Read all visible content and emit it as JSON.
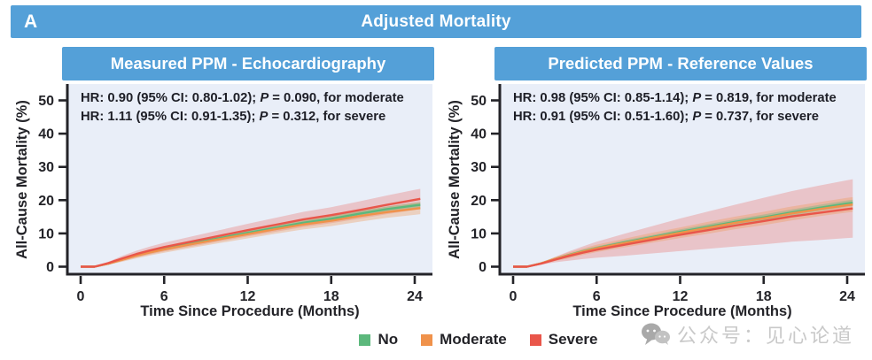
{
  "header": {
    "panel_label": "A",
    "title": "Adjusted Mortality"
  },
  "colors": {
    "header_bg": "#54a0d8",
    "plot_bg": "#e9eef8",
    "axis": "#232328",
    "no": "#5cb87c",
    "moderate": "#f0924b",
    "severe": "#e9564a",
    "watermark": "#c9c9c9"
  },
  "axes": {
    "y_label": "All-Cause Mortality (%)",
    "x_label": "Time Since Procedure (Months)",
    "yticks": [
      0,
      10,
      20,
      30,
      40,
      50
    ],
    "xticks": [
      0,
      6,
      12,
      18,
      24
    ]
  },
  "legend": {
    "items": [
      {
        "label": "No",
        "color": "#5cb87c"
      },
      {
        "label": "Moderate",
        "color": "#f0924b"
      },
      {
        "label": "Severe",
        "color": "#e9564a"
      }
    ]
  },
  "watermark": {
    "text": "公众号：见心论道"
  },
  "panels": [
    {
      "title": "Measured PPM - Echocardiography",
      "stats": [
        {
          "pre": "HR: 0.90 (95% CI: 0.80-1.02); ",
          "p": "P",
          "post": " = 0.090, for moderate"
        },
        {
          "pre": "HR: 1.11 (95% CI: 0.91-1.35); ",
          "p": "P",
          "post": " = 0.312, for severe"
        }
      ]
    },
    {
      "title": "Predicted PPM - Reference Values",
      "stats": [
        {
          "pre": "HR: 0.98 (95% CI: 0.85-1.14); ",
          "p": "P",
          "post": " = 0.819, for moderate"
        },
        {
          "pre": "HR: 0.91 (95% CI: 0.51-1.60); ",
          "p": "P",
          "post": " = 0.737, for severe"
        }
      ]
    }
  ],
  "chart_data": [
    {
      "type": "line",
      "title": "Measured PPM - Echocardiography",
      "xlabel": "Time Since Procedure (Months)",
      "ylabel": "All-Cause Mortality (%)",
      "xlim": [
        0,
        24
      ],
      "ylim": [
        0,
        50
      ],
      "grid": false,
      "x": [
        0,
        1,
        2,
        3,
        4,
        5,
        6,
        8,
        10,
        12,
        14,
        16,
        18,
        20,
        22,
        24,
        24.4
      ],
      "series": [
        {
          "key": "no",
          "name": "No",
          "color": "#5cb87c",
          "band_opacity": 0.35,
          "values": [
            0,
            0,
            0.9,
            2.2,
            3.4,
            4.4,
            5.4,
            7.0,
            8.6,
            10.2,
            11.7,
            13.2,
            14.4,
            15.9,
            17.3,
            18.4,
            18.6
          ],
          "lo": [
            0,
            0,
            0.7,
            1.9,
            3.0,
            4.0,
            4.9,
            6.5,
            8.0,
            9.6,
            11.0,
            12.5,
            13.6,
            15.1,
            16.5,
            17.6,
            17.8
          ],
          "hi": [
            0,
            0,
            1.1,
            2.5,
            3.8,
            4.8,
            5.9,
            7.5,
            9.2,
            10.8,
            12.4,
            13.9,
            15.2,
            16.7,
            18.1,
            19.2,
            19.4
          ]
        },
        {
          "key": "moderate",
          "name": "Moderate",
          "color": "#f0924b",
          "band_opacity": 0.32,
          "values": [
            0,
            0,
            0.9,
            2.1,
            3.3,
            4.3,
            5.2,
            6.8,
            8.3,
            9.8,
            11.3,
            12.7,
            13.8,
            15.2,
            16.4,
            17.4,
            17.6
          ],
          "lo": [
            0,
            0,
            0.6,
            1.5,
            2.5,
            3.4,
            4.2,
            5.7,
            7.1,
            8.5,
            9.9,
            11.2,
            12.2,
            13.5,
            14.7,
            15.6,
            15.8
          ],
          "hi": [
            0,
            0,
            1.2,
            2.7,
            4.1,
            5.2,
            6.2,
            7.9,
            9.5,
            11.1,
            12.7,
            14.2,
            15.4,
            16.9,
            18.1,
            19.2,
            19.4
          ]
        },
        {
          "key": "severe",
          "name": "Severe",
          "color": "#e9564a",
          "band_opacity": 0.27,
          "values": [
            0,
            0,
            1.1,
            2.5,
            3.8,
            4.9,
            5.9,
            7.6,
            9.3,
            11.0,
            12.6,
            14.2,
            15.5,
            17.0,
            18.6,
            20.1,
            20.4
          ],
          "lo": [
            0,
            0,
            0.7,
            1.7,
            2.8,
            3.7,
            4.6,
            6.1,
            7.6,
            9.1,
            10.5,
            11.9,
            13.1,
            14.4,
            15.8,
            17.1,
            17.4
          ],
          "hi": [
            0,
            0,
            1.5,
            3.3,
            4.8,
            6.1,
            7.2,
            9.1,
            11.0,
            12.9,
            14.7,
            16.5,
            17.9,
            19.6,
            21.4,
            23.1,
            23.4
          ]
        }
      ]
    },
    {
      "type": "line",
      "title": "Predicted PPM - Reference Values",
      "xlabel": "Time Since Procedure (Months)",
      "ylabel": "All-Cause Mortality (%)",
      "xlim": [
        0,
        24
      ],
      "ylim": [
        0,
        50
      ],
      "grid": false,
      "x": [
        0,
        1,
        2,
        3,
        4,
        5,
        6,
        8,
        10,
        12,
        14,
        16,
        18,
        20,
        22,
        24,
        24.4
      ],
      "series": [
        {
          "key": "no",
          "name": "No",
          "color": "#5cb87c",
          "band_opacity": 0.35,
          "values": [
            0,
            0,
            1.0,
            2.3,
            3.5,
            4.6,
            5.6,
            7.3,
            8.9,
            10.5,
            12.0,
            13.5,
            14.8,
            16.3,
            17.7,
            19.0,
            19.2
          ],
          "lo": [
            0,
            0,
            0.8,
            2.0,
            3.1,
            4.1,
            5.1,
            6.7,
            8.3,
            9.8,
            11.2,
            12.7,
            13.9,
            15.4,
            16.8,
            18.1,
            18.3
          ],
          "hi": [
            0,
            0,
            1.2,
            2.6,
            3.9,
            5.1,
            6.1,
            7.9,
            9.5,
            11.2,
            12.8,
            14.3,
            15.7,
            17.2,
            18.6,
            19.9,
            20.1
          ]
        },
        {
          "key": "moderate",
          "name": "Moderate",
          "color": "#f0924b",
          "band_opacity": 0.32,
          "values": [
            0,
            0,
            1.0,
            2.3,
            3.4,
            4.5,
            5.5,
            7.1,
            8.7,
            10.2,
            11.7,
            13.2,
            14.5,
            16.0,
            17.3,
            18.5,
            18.7
          ],
          "lo": [
            0,
            0,
            0.7,
            1.7,
            2.5,
            3.5,
            4.4,
            5.8,
            7.2,
            8.6,
            9.9,
            11.3,
            12.5,
            13.9,
            15.2,
            16.3,
            16.5
          ],
          "hi": [
            0,
            0,
            1.3,
            2.9,
            4.3,
            5.5,
            6.6,
            8.4,
            10.2,
            11.8,
            13.5,
            15.1,
            16.5,
            18.1,
            19.4,
            20.7,
            20.9
          ]
        },
        {
          "key": "severe",
          "name": "Severe",
          "color": "#e9564a",
          "band_opacity": 0.27,
          "values": [
            0,
            0,
            0.9,
            2.1,
            3.2,
            4.2,
            5.1,
            6.6,
            8.1,
            9.6,
            11.0,
            12.4,
            13.7,
            15.1,
            16.2,
            17.3,
            17.5
          ],
          "lo": [
            0,
            0,
            0.6,
            1.3,
            1.8,
            2.3,
            2.7,
            3.3,
            4.0,
            4.7,
            5.4,
            6.1,
            6.7,
            7.5,
            8.0,
            8.6,
            8.7
          ],
          "hi": [
            0,
            0,
            1.2,
            2.9,
            4.6,
            6.1,
            7.5,
            9.9,
            12.2,
            14.5,
            16.6,
            18.7,
            20.7,
            22.7,
            24.4,
            26.0,
            26.3
          ]
        }
      ]
    }
  ]
}
